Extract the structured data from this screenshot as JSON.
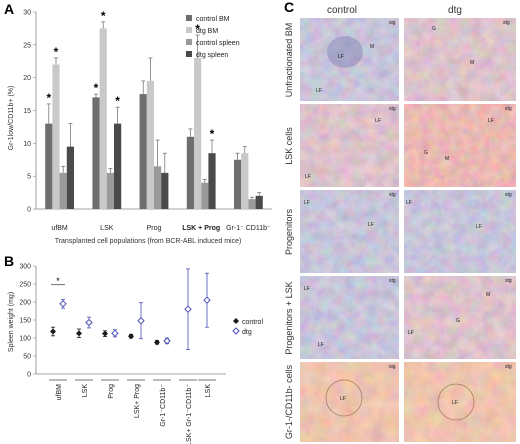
{
  "panels": {
    "A": {
      "letter": "A",
      "ylabel": "Gr-1low/CD11b+ (%)",
      "xlabel": "Transplanted cell populations (from BCR-ABL induced mice)",
      "legend": [
        "control BM",
        "dtg BM",
        "control spleen",
        "dtg spleen"
      ]
    },
    "B": {
      "letter": "B",
      "ylabel": "Spleen weight (mg)",
      "legend": [
        "control",
        "dtg"
      ],
      "significance": "*"
    },
    "C": {
      "letter": "C",
      "col_headers": [
        "control",
        "dtg"
      ],
      "row_labels": [
        "Unfractionated BM",
        "LSK cells",
        "Progenitors",
        "Progenitors + LSK",
        "Gr-1-/CD11b- cells"
      ],
      "image_tags": [
        "LF",
        "M",
        "G",
        "sig",
        "stg"
      ]
    }
  },
  "colors": {
    "control_bm": "#6e6e6e",
    "dtg_bm": "#c9c9c9",
    "control_spleen": "#9a9a9a",
    "dtg_spleen": "#4a4a4a",
    "control_marker": "#1a1a1a",
    "dtg_marker": "#4a4fb5"
  },
  "chart_data": [
    {
      "type": "bar",
      "title": "",
      "ylabel": "Gr-1low/CD11b+ (%)",
      "xlabel": "Transplanted cell populations (from BCR-ABL induced mice)",
      "ylim": [
        0,
        30
      ],
      "yticks": [
        0,
        5,
        10,
        15,
        20,
        25,
        30
      ],
      "categories": [
        "ufBM",
        "LSK",
        "Prog",
        "LSK + Prog",
        "Gr-1⁻ CD11b⁻"
      ],
      "series": [
        {
          "name": "control BM",
          "values": [
            13,
            17,
            17.5,
            11,
            7.5
          ],
          "errors": [
            3,
            0.5,
            2,
            1.2,
            1
          ]
        },
        {
          "name": "dtg BM",
          "values": [
            22,
            27.5,
            19.5,
            23,
            8.5
          ],
          "errors": [
            1,
            1,
            3.5,
            3.5,
            1
          ]
        },
        {
          "name": "control spleen",
          "values": [
            5.5,
            5.5,
            6.5,
            4,
            1.5
          ],
          "errors": [
            1,
            0.7,
            4,
            0.5,
            0.3
          ]
        },
        {
          "name": "dtg spleen",
          "values": [
            9.5,
            13,
            5.5,
            8.5,
            2
          ],
          "errors": [
            3.5,
            2.5,
            3,
            2,
            0.5
          ]
        }
      ],
      "significance": [
        [
          1,
          1,
          0,
          0
        ],
        [
          1,
          1,
          0,
          1
        ],
        [
          0,
          0,
          0,
          0
        ],
        [
          0,
          1,
          0,
          1
        ],
        [
          0,
          0,
          0,
          0
        ]
      ],
      "legend_position": "top-right"
    },
    {
      "type": "scatter",
      "ylabel": "Spleen weight (mg)",
      "ylim": [
        0,
        300
      ],
      "yticks": [
        0,
        50,
        100,
        150,
        200,
        250,
        300
      ],
      "categories": [
        "ufBM",
        "LSK",
        "Prog",
        "LSK+ Prog",
        "Gr-1⁻CD11b⁻",
        "LSK+ Gr-1⁻CD11b⁻",
        "LSK"
      ],
      "series": [
        {
          "name": "control",
          "values": [
            118,
            113,
            112,
            105,
            88
          ],
          "errors": [
            12,
            12,
            8,
            5,
            5
          ]
        },
        {
          "name": "dtg",
          "values": [
            195,
            143,
            113,
            148,
            92,
            180,
            205
          ],
          "errors": [
            12,
            15,
            10,
            50,
            8,
            112,
            75
          ]
        }
      ],
      "legend_position": "right"
    }
  ]
}
